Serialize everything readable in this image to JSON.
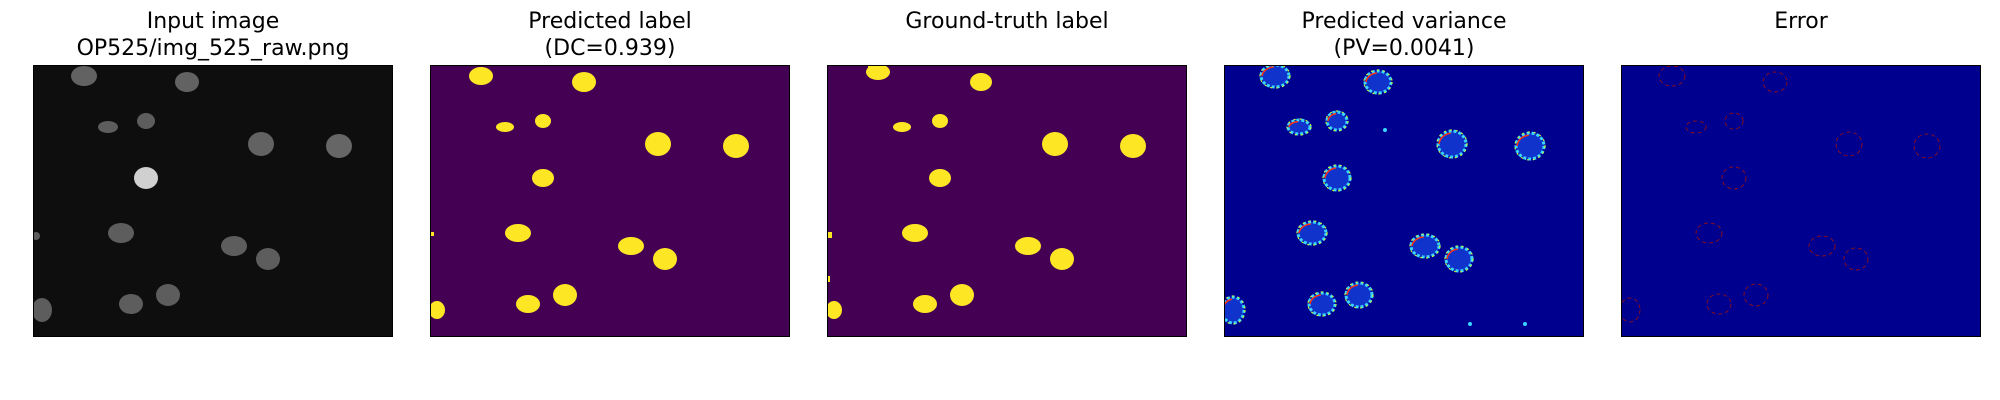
{
  "figure": {
    "panels": [
      {
        "id": "input",
        "title_line1": "Input image",
        "title_line2": "OP525/img_525_raw.png",
        "colormap": "grayscale"
      },
      {
        "id": "predicted-label",
        "title_line1": "Predicted label",
        "title_line2": "(DC=0.939)",
        "colormap": "viridis"
      },
      {
        "id": "ground-truth",
        "title_line1": "Ground-truth label",
        "title_line2": "",
        "colormap": "viridis"
      },
      {
        "id": "predicted-variance",
        "title_line1": "Predicted variance",
        "title_line2": "(PV=0.0041)",
        "colormap": "jet"
      },
      {
        "id": "error",
        "title_line1": "Error",
        "title_line2": "",
        "colormap": "jet"
      }
    ]
  },
  "colors": {
    "viridis_bg": "#440154",
    "viridis_fg": "#fde725",
    "jet_bg": "#00008f",
    "gray_bg": "#0e0e0e"
  }
}
